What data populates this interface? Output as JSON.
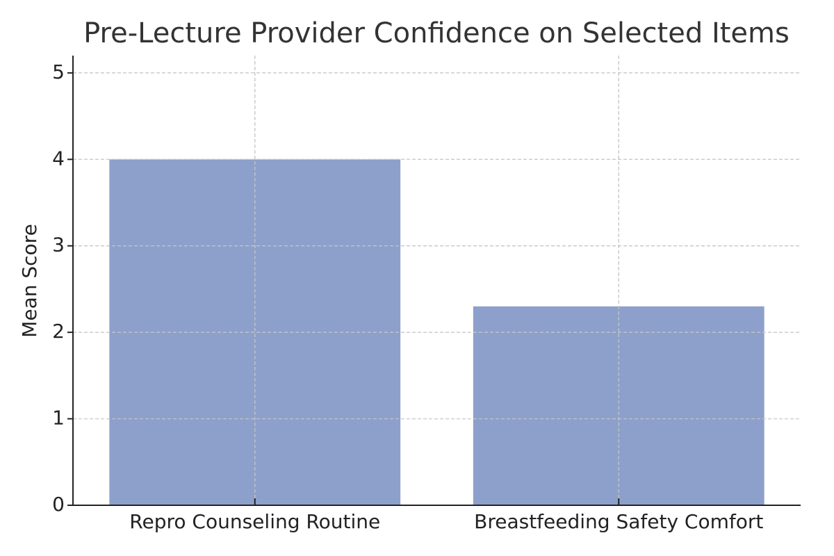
{
  "chart_data": {
    "type": "bar",
    "title": "Pre-Lecture Provider Confidence on Selected Items",
    "y_label": "Mean Score",
    "categories": [
      "Repro Counseling Routine",
      "Breastfeeding Safety Comfort"
    ],
    "values": [
      4,
      2.3
    ],
    "color": "#8da0cb",
    "ylim": [
      0,
      5.2
    ],
    "yticks": [
      0,
      1,
      2,
      3,
      4,
      5
    ],
    "grid": true
  }
}
